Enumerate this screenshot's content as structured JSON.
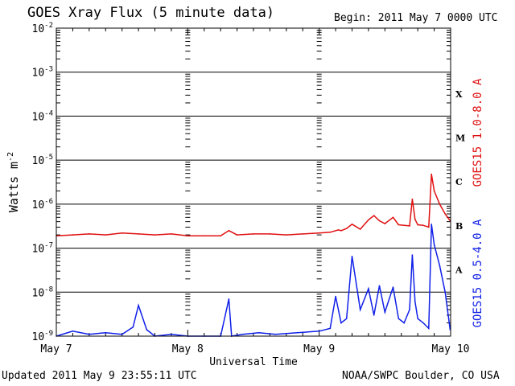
{
  "header": {
    "title": "GOES Xray Flux (5 minute data)",
    "begin_label": "Begin:",
    "begin_value": "2011 May 7 0000 UTC"
  },
  "footer": {
    "updated": "Updated 2011 May  9 23:55:11 UTC",
    "credit": "NOAA/SWPC Boulder, CO USA"
  },
  "colors": {
    "long": "#e01010",
    "short": "#1020e8",
    "axis": "#000000"
  },
  "chart_data": {
    "type": "line",
    "title": "GOES Xray Flux (5 minute data)",
    "xlabel": "Universal Time",
    "ylabel": "Watts m",
    "ylabel_exp": "-2",
    "yscale": "log",
    "ylim": [
      1e-09,
      0.01
    ],
    "xlim": [
      "2011-05-07 00:00",
      "2011-05-10 00:00"
    ],
    "x_unit": "UTC",
    "grid": true,
    "x_tick_labels": [
      "May 7",
      "May 8",
      "May 9",
      "May 10"
    ],
    "y_tick_labels": [
      {
        "base": "10",
        "exp": "-9",
        "v": 1e-09
      },
      {
        "base": "10",
        "exp": "-8",
        "v": 1e-08
      },
      {
        "base": "10",
        "exp": "-7",
        "v": 1e-07
      },
      {
        "base": "10",
        "exp": "-6",
        "v": 1e-06
      },
      {
        "base": "10",
        "exp": "-5",
        "v": 1e-05
      },
      {
        "base": "10",
        "exp": "-4",
        "v": 0.0001
      },
      {
        "base": "10",
        "exp": "-3",
        "v": 0.001
      },
      {
        "base": "10",
        "exp": "-2",
        "v": 0.01
      }
    ],
    "flare_classes": [
      {
        "label": "A",
        "v": 3.2e-08
      },
      {
        "label": "B",
        "v": 3.2e-07
      },
      {
        "label": "C",
        "v": 3.2e-06
      },
      {
        "label": "M",
        "v": 3.2e-05
      },
      {
        "label": "X",
        "v": 0.00032
      }
    ],
    "series": [
      {
        "name": "GOES15 1.0-8.0 A",
        "color": "#e01010",
        "x": [
          "2011-05-07 00:00",
          "2011-05-07 03:00",
          "2011-05-07 06:00",
          "2011-05-07 09:00",
          "2011-05-07 12:00",
          "2011-05-07 15:00",
          "2011-05-07 18:00",
          "2011-05-07 21:00",
          "2011-05-08 00:00",
          "2011-05-08 03:00",
          "2011-05-08 06:00",
          "2011-05-08 07:30",
          "2011-05-08 09:00",
          "2011-05-08 12:00",
          "2011-05-08 15:00",
          "2011-05-08 18:00",
          "2011-05-08 21:00",
          "2011-05-09 00:00",
          "2011-05-09 02:00",
          "2011-05-09 03:30",
          "2011-05-09 04:00",
          "2011-05-09 05:00",
          "2011-05-09 06:00",
          "2011-05-09 07:30",
          "2011-05-09 09:00",
          "2011-05-09 10:00",
          "2011-05-09 11:00",
          "2011-05-09 12:00",
          "2011-05-09 13:30",
          "2011-05-09 14:30",
          "2011-05-09 15:30",
          "2011-05-09 16:30",
          "2011-05-09 17:00",
          "2011-05-09 17:30",
          "2011-05-09 18:00",
          "2011-05-09 19:00",
          "2011-05-09 20:00",
          "2011-05-09 20:30",
          "2011-05-09 21:00",
          "2011-05-09 22:00",
          "2011-05-09 23:00",
          "2011-05-09 23:55"
        ],
        "y": [
          1.9e-07,
          2e-07,
          2.1e-07,
          2e-07,
          2.2e-07,
          2.1e-07,
          2e-07,
          2.1e-07,
          1.9e-07,
          1.9e-07,
          1.9e-07,
          2.5e-07,
          2e-07,
          2.1e-07,
          2.1e-07,
          2e-07,
          2.1e-07,
          2.2e-07,
          2.3e-07,
          2.6e-07,
          2.5e-07,
          2.8e-07,
          3.5e-07,
          2.7e-07,
          4.4e-07,
          5.5e-07,
          4.2e-07,
          3.6e-07,
          5e-07,
          3.4e-07,
          3.3e-07,
          3.2e-07,
          1.3e-06,
          4.5e-07,
          3.4e-07,
          3.3e-07,
          3e-07,
          4.8e-06,
          2e-06,
          1e-06,
          6e-07,
          4.2e-07
        ]
      },
      {
        "name": "GOES15 0.5-4.0 A",
        "color": "#1020e8",
        "x": [
          "2011-05-07 00:00",
          "2011-05-07 03:00",
          "2011-05-07 06:00",
          "2011-05-07 09:00",
          "2011-05-07 12:00",
          "2011-05-07 14:00",
          "2011-05-07 15:00",
          "2011-05-07 16:30",
          "2011-05-07 18:00",
          "2011-05-07 21:00",
          "2011-05-08 00:00",
          "2011-05-08 03:00",
          "2011-05-08 06:00",
          "2011-05-08 07:30",
          "2011-05-08 08:00",
          "2011-05-08 10:00",
          "2011-05-08 13:00",
          "2011-05-08 16:00",
          "2011-05-08 20:00",
          "2011-05-09 00:00",
          "2011-05-09 02:00",
          "2011-05-09 03:00",
          "2011-05-09 04:00",
          "2011-05-09 05:00",
          "2011-05-09 06:00",
          "2011-05-09 07:30",
          "2011-05-09 09:00",
          "2011-05-09 10:00",
          "2011-05-09 11:00",
          "2011-05-09 12:00",
          "2011-05-09 13:30",
          "2011-05-09 14:30",
          "2011-05-09 15:30",
          "2011-05-09 16:30",
          "2011-05-09 17:00",
          "2011-05-09 17:30",
          "2011-05-09 18:00",
          "2011-05-09 19:00",
          "2011-05-09 20:00",
          "2011-05-09 20:30",
          "2011-05-09 21:00",
          "2011-05-09 22:00",
          "2011-05-09 23:00",
          "2011-05-09 23:55"
        ],
        "y": [
          1e-09,
          1.3e-09,
          1.1e-09,
          1.2e-09,
          1.1e-09,
          1.6e-09,
          5e-09,
          1.4e-09,
          1e-09,
          1.1e-09,
          1e-09,
          1e-09,
          1e-09,
          7e-09,
          1e-09,
          1.1e-09,
          1.2e-09,
          1.1e-09,
          1.2e-09,
          1.3e-09,
          1.5e-09,
          8e-09,
          2e-09,
          2.5e-09,
          6.5e-08,
          4e-09,
          1.2e-08,
          3e-09,
          1.4e-08,
          3.5e-09,
          1.3e-08,
          2.5e-09,
          2e-09,
          4e-09,
          7e-08,
          6e-09,
          2.5e-09,
          2e-09,
          1.5e-09,
          3.5e-07,
          1.2e-07,
          4e-08,
          1e-08,
          1.4e-09
        ]
      }
    ]
  }
}
